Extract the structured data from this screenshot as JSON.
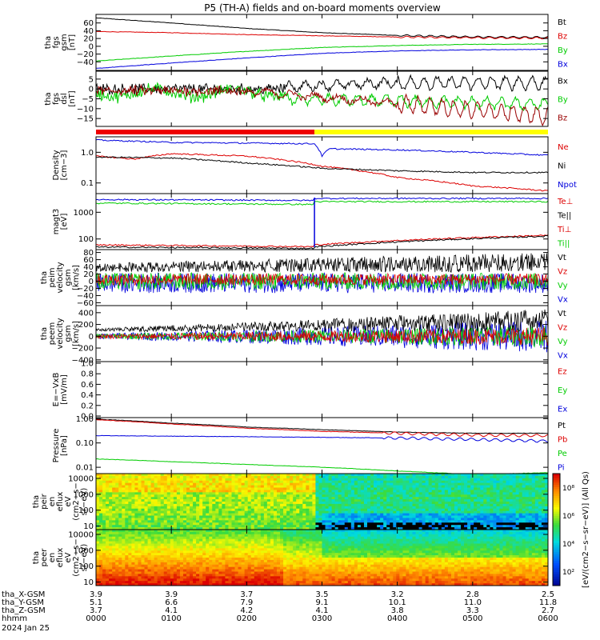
{
  "title": "P5 (TH-A) fields and on-board moments overview",
  "time": {
    "start_hours": 0,
    "end_hours": 6,
    "ticks": [
      "0000",
      "0100",
      "0200",
      "0300",
      "0400",
      "0500",
      "0600"
    ],
    "date": "2024 Jan 25",
    "row_labels": [
      "tha_X-GSM",
      "tha_Y-GSM",
      "tha_Z-GSM",
      "hhmm"
    ],
    "x_gsm": [
      "3.9",
      "3.9",
      "3.7",
      "3.5",
      "3.2",
      "2.8",
      "2.5"
    ],
    "y_gsm": [
      "5.1",
      "6.6",
      "7.9",
      "9.1",
      "10.1",
      "11.0",
      "11.8"
    ],
    "z_gsm": [
      "3.7",
      "4.1",
      "4.2",
      "4.1",
      "3.8",
      "3.3",
      "2.7"
    ]
  },
  "panels": {
    "fgs": {
      "ylabel": [
        "tha",
        "fgs",
        "gsm",
        "[nT]"
      ],
      "ticks": [
        "60",
        "40",
        "20",
        "0",
        "−20",
        "−40"
      ],
      "legend": [
        "Bt",
        "Bz",
        "By",
        "Bx"
      ],
      "colors": [
        "#000000",
        "#dd0000",
        "#00cc00",
        "#0000dd"
      ]
    },
    "fgs_dsl": {
      "ylabel": [
        "tha",
        "fgs",
        "dsl",
        "[nT]"
      ],
      "ticks": [
        "5",
        "0",
        "−5",
        "−10",
        "−15"
      ],
      "legend": [
        "Bx",
        "By",
        "Bz"
      ],
      "colors": [
        "#000000",
        "#00cc00",
        "#990000"
      ]
    },
    "density": {
      "ylabel": [
        "Density",
        "[cm−3]"
      ],
      "ticks": [
        "1.0",
        "0.1"
      ],
      "legend": [
        "Ne",
        "Ni",
        "Npot"
      ],
      "colors": [
        "#dd0000",
        "#000000",
        "#0000dd"
      ]
    },
    "temperature": {
      "ylabel": [
        "magt3",
        "[eV]"
      ],
      "ticks": [
        "1000",
        "100"
      ],
      "legend": [
        "Te⊥",
        "Te||",
        "Ti⊥",
        "Ti||"
      ],
      "colors": [
        "#dd0000",
        "#000000",
        "#dd0000",
        "#00cc00"
      ]
    },
    "peim_velocity": {
      "ylabel": [
        "tha",
        "peim",
        "velocity",
        "gsm",
        "[km/s]"
      ],
      "ticks": [
        "80",
        "60",
        "40",
        "20",
        "0",
        "−20",
        "−40",
        "−60"
      ],
      "legend": [
        "Vt",
        "Vz",
        "Vy",
        "Vx"
      ],
      "colors": [
        "#000000",
        "#dd0000",
        "#00cc00",
        "#0000dd"
      ]
    },
    "peem_velocity": {
      "ylabel": [
        "tha",
        "peem",
        "velocity",
        "gsm",
        "[km/s]"
      ],
      "ticks": [
        "400",
        "200",
        "0",
        "−200",
        "−400"
      ],
      "legend": [
        "Vt",
        "Vz",
        "Vy",
        "Vx"
      ],
      "colors": [
        "#000000",
        "#dd0000",
        "#00cc00",
        "#0000dd"
      ]
    },
    "efield": {
      "ylabel": [
        "E=−VxB",
        "[mV/m]"
      ],
      "ticks": [
        "1.0",
        "0.8",
        "0.6",
        "0.4",
        "0.2",
        "0.0"
      ],
      "legend": [
        "Ez",
        "Ey",
        "Ex"
      ],
      "colors": [
        "#dd0000",
        "#00cc00",
        "#0000dd"
      ]
    },
    "pressure": {
      "ylabel": [
        "Pressure",
        "[nPa]"
      ],
      "ticks": [
        "1.00",
        "0.10",
        "0.01"
      ],
      "legend": [
        "Pt",
        "Pb",
        "Pe",
        "Pi"
      ],
      "colors": [
        "#000000",
        "#dd0000",
        "#00cc00",
        "#0000dd"
      ]
    },
    "peir": {
      "ylabel": [
        "tha",
        "peir",
        "en",
        "eflux",
        "eV",
        "(cm2−s−",
        "sr−eV)"
      ],
      "ticks": [
        "10000",
        "1000",
        "100",
        "10"
      ]
    },
    "peer": {
      "ylabel": [
        "tha",
        "peer",
        "en",
        "eflux",
        "eV",
        "(cm2−s−",
        "sr−eV)"
      ],
      "ticks": [
        "10000",
        "1000",
        "100",
        "10"
      ]
    },
    "colorbar": {
      "label": "[eV/(cm2−s−sr−eV)] (All Qs)",
      "ticks": [
        "10⁸",
        "10⁶",
        "10⁴",
        "10²"
      ]
    }
  },
  "chart_data": {
    "type": "line",
    "title": "P5 (TH-A) fields and on-board moments overview",
    "x_range_hours": [
      0,
      6
    ],
    "series": [
      {
        "panel": "fgs",
        "name": "Bt",
        "x": [
          0,
          1,
          2,
          3,
          4,
          5,
          6
        ],
        "values": [
          73,
          60,
          46,
          35,
          28,
          24,
          23
        ]
      },
      {
        "panel": "fgs",
        "name": "Bz",
        "x": [
          0,
          1,
          2,
          3,
          4,
          5,
          6
        ],
        "values": [
          38,
          35,
          30,
          27,
          24,
          22,
          21
        ]
      },
      {
        "panel": "fgs",
        "name": "By",
        "x": [
          0,
          1,
          2,
          3,
          4,
          5,
          6
        ],
        "values": [
          -38,
          -25,
          -13,
          -3,
          2,
          5,
          6
        ]
      },
      {
        "panel": "fgs",
        "name": "Bx",
        "x": [
          0,
          1,
          2,
          3,
          4,
          5,
          6
        ],
        "values": [
          -57,
          -43,
          -30,
          -18,
          -12,
          -9,
          -8
        ]
      },
      {
        "panel": "density",
        "name": "Ne",
        "x": [
          0,
          0.5,
          1,
          2,
          2.9,
          3,
          4,
          5,
          6
        ],
        "values": [
          0.75,
          0.6,
          0.9,
          0.75,
          0.4,
          0.35,
          0.15,
          0.08,
          0.055
        ]
      },
      {
        "panel": "density",
        "name": "Ni",
        "x": [
          0,
          1,
          2,
          3,
          4,
          5,
          6
        ],
        "values": [
          0.7,
          0.65,
          0.45,
          0.3,
          0.25,
          0.22,
          0.22
        ]
      },
      {
        "panel": "density",
        "name": "Npot",
        "x": [
          0,
          1,
          2,
          2.9,
          3,
          3.1,
          4,
          5,
          6
        ],
        "values": [
          2.5,
          2.1,
          2.0,
          1.9,
          0.75,
          1.3,
          1.2,
          1.0,
          0.8
        ]
      },
      {
        "panel": "pressure",
        "name": "Pt",
        "x": [
          0,
          1,
          2,
          3,
          4,
          5,
          6
        ],
        "values": [
          0.95,
          0.65,
          0.45,
          0.35,
          0.28,
          0.25,
          0.25
        ]
      },
      {
        "panel": "pressure",
        "name": "Pb",
        "x": [
          0,
          1,
          2,
          3,
          4,
          5,
          6
        ],
        "values": [
          0.9,
          0.6,
          0.4,
          0.3,
          0.25,
          0.21,
          0.2
        ]
      },
      {
        "panel": "pressure",
        "name": "Pe",
        "x": [
          0,
          1,
          2,
          3,
          4,
          5,
          6
        ],
        "values": [
          0.022,
          0.017,
          0.013,
          0.01,
          0.007,
          0.005,
          0.006
        ]
      },
      {
        "panel": "pressure",
        "name": "Pi",
        "x": [
          0,
          1,
          2,
          3,
          4,
          5,
          6
        ],
        "values": [
          0.2,
          0.19,
          0.18,
          0.17,
          0.16,
          0.14,
          0.12
        ]
      }
    ]
  }
}
